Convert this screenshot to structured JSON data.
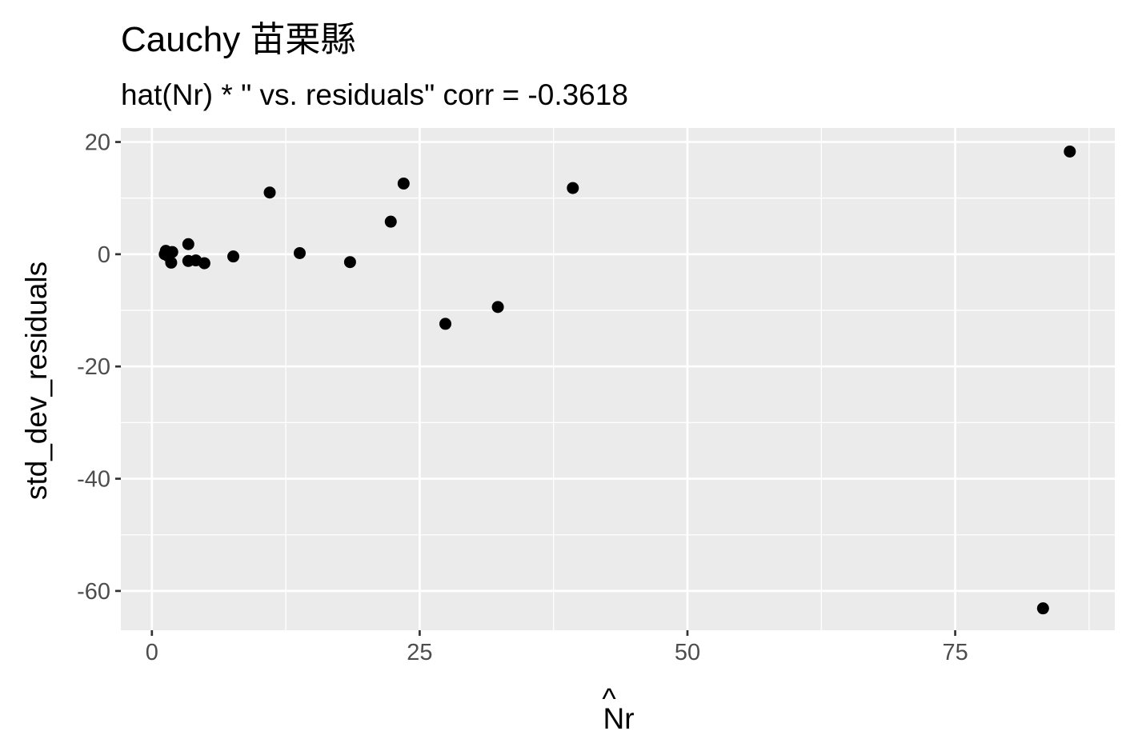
{
  "chart_data": {
    "type": "scatter",
    "title": "Cauchy 苗栗縣",
    "subtitle": "hat(Nr) * \"  vs. residuals\" corr = -0.3618",
    "xlabel": "Nr",
    "xlabel_hat": "^",
    "ylabel": "std_dev_residuals",
    "xlim": [
      -2.9,
      89.9
    ],
    "ylim": [
      -67.0,
      22.5
    ],
    "x_ticks": [
      0,
      25,
      50,
      75
    ],
    "x_tick_labels": [
      "0",
      "25",
      "50",
      "75"
    ],
    "y_ticks": [
      -60,
      -40,
      -20,
      0,
      20
    ],
    "y_tick_labels": [
      "-60",
      "-40",
      "-20",
      "0",
      "20"
    ],
    "grid": true,
    "legend": "none",
    "colors": {
      "panel": "#ebebeb",
      "grid": "#ffffff",
      "point": "#000000"
    },
    "points": [
      {
        "x": 1.2,
        "y": 0.0
      },
      {
        "x": 1.3,
        "y": 0.6
      },
      {
        "x": 1.5,
        "y": -0.3
      },
      {
        "x": 1.8,
        "y": -1.5
      },
      {
        "x": 1.9,
        "y": 0.4
      },
      {
        "x": 3.4,
        "y": 1.8
      },
      {
        "x": 3.4,
        "y": -1.2
      },
      {
        "x": 4.1,
        "y": -1.1
      },
      {
        "x": 4.9,
        "y": -1.6
      },
      {
        "x": 7.6,
        "y": -0.4
      },
      {
        "x": 11.0,
        "y": 11.0
      },
      {
        "x": 13.8,
        "y": 0.2
      },
      {
        "x": 18.5,
        "y": -1.4
      },
      {
        "x": 22.3,
        "y": 5.8
      },
      {
        "x": 23.5,
        "y": 12.6
      },
      {
        "x": 27.4,
        "y": -12.4
      },
      {
        "x": 32.3,
        "y": -9.4
      },
      {
        "x": 39.3,
        "y": 11.8
      },
      {
        "x": 83.2,
        "y": -63.1
      },
      {
        "x": 85.7,
        "y": 18.3
      }
    ]
  }
}
